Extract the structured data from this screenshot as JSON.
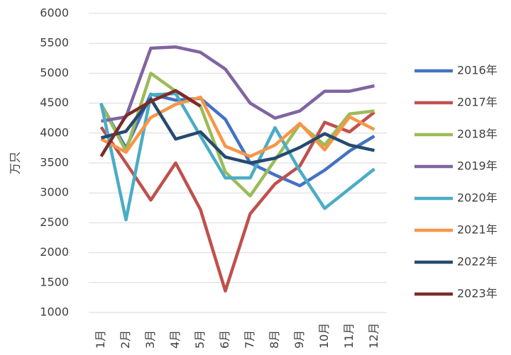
{
  "chart_data": {
    "type": "line",
    "y_label": "万只",
    "categories": [
      "1月",
      "2月",
      "3月",
      "4月",
      "5月",
      "6月",
      "7月",
      "8月",
      "9月",
      "10月",
      "11月",
      "12月"
    ],
    "series": [
      {
        "name": "2016年",
        "color": "#4472c4",
        "values": [
          4480,
          3750,
          4650,
          4550,
          4580,
          4230,
          3500,
          3300,
          3120,
          3380,
          3700,
          3950
        ]
      },
      {
        "name": "2017年",
        "color": "#c0504d",
        "values": [
          4100,
          3500,
          2880,
          3500,
          2720,
          1360,
          2650,
          3150,
          3450,
          4180,
          4020,
          4350
        ]
      },
      {
        "name": "2018年",
        "color": "#9bbb59",
        "values": [
          4480,
          3700,
          5000,
          4700,
          4450,
          3350,
          2950,
          3550,
          4150,
          3800,
          4320,
          4370
        ]
      },
      {
        "name": "2019年",
        "color": "#8064a2",
        "values": [
          4200,
          4270,
          5420,
          5440,
          5350,
          5070,
          4500,
          4250,
          4370,
          4700,
          4700,
          4790
        ]
      },
      {
        "name": "2020年",
        "color": "#4bacc6",
        "values": [
          4500,
          2550,
          4640,
          4660,
          3950,
          3250,
          3250,
          4090,
          3370,
          2740,
          3070,
          3400
        ]
      },
      {
        "name": "2021年",
        "color": "#f79646",
        "values": [
          3900,
          3680,
          4260,
          4480,
          4600,
          3780,
          3610,
          3800,
          4160,
          3720,
          4270,
          4060
        ]
      },
      {
        "name": "2022年",
        "color": "#264a6e",
        "values": [
          3920,
          4030,
          4570,
          3900,
          4020,
          3600,
          3500,
          3580,
          3760,
          3990,
          3800,
          3710
        ]
      },
      {
        "name": "2023年",
        "color": "#7b2c28",
        "values": [
          3610,
          4290,
          4530,
          4710,
          4450,
          null,
          null,
          null,
          null,
          null,
          null,
          null
        ]
      }
    ],
    "ylim": [
      1000,
      6000
    ],
    "yticks": [
      1000,
      1500,
      2000,
      2500,
      3000,
      3500,
      4000,
      4500,
      5000,
      5500,
      6000
    ],
    "grid": true,
    "legend": "right"
  }
}
